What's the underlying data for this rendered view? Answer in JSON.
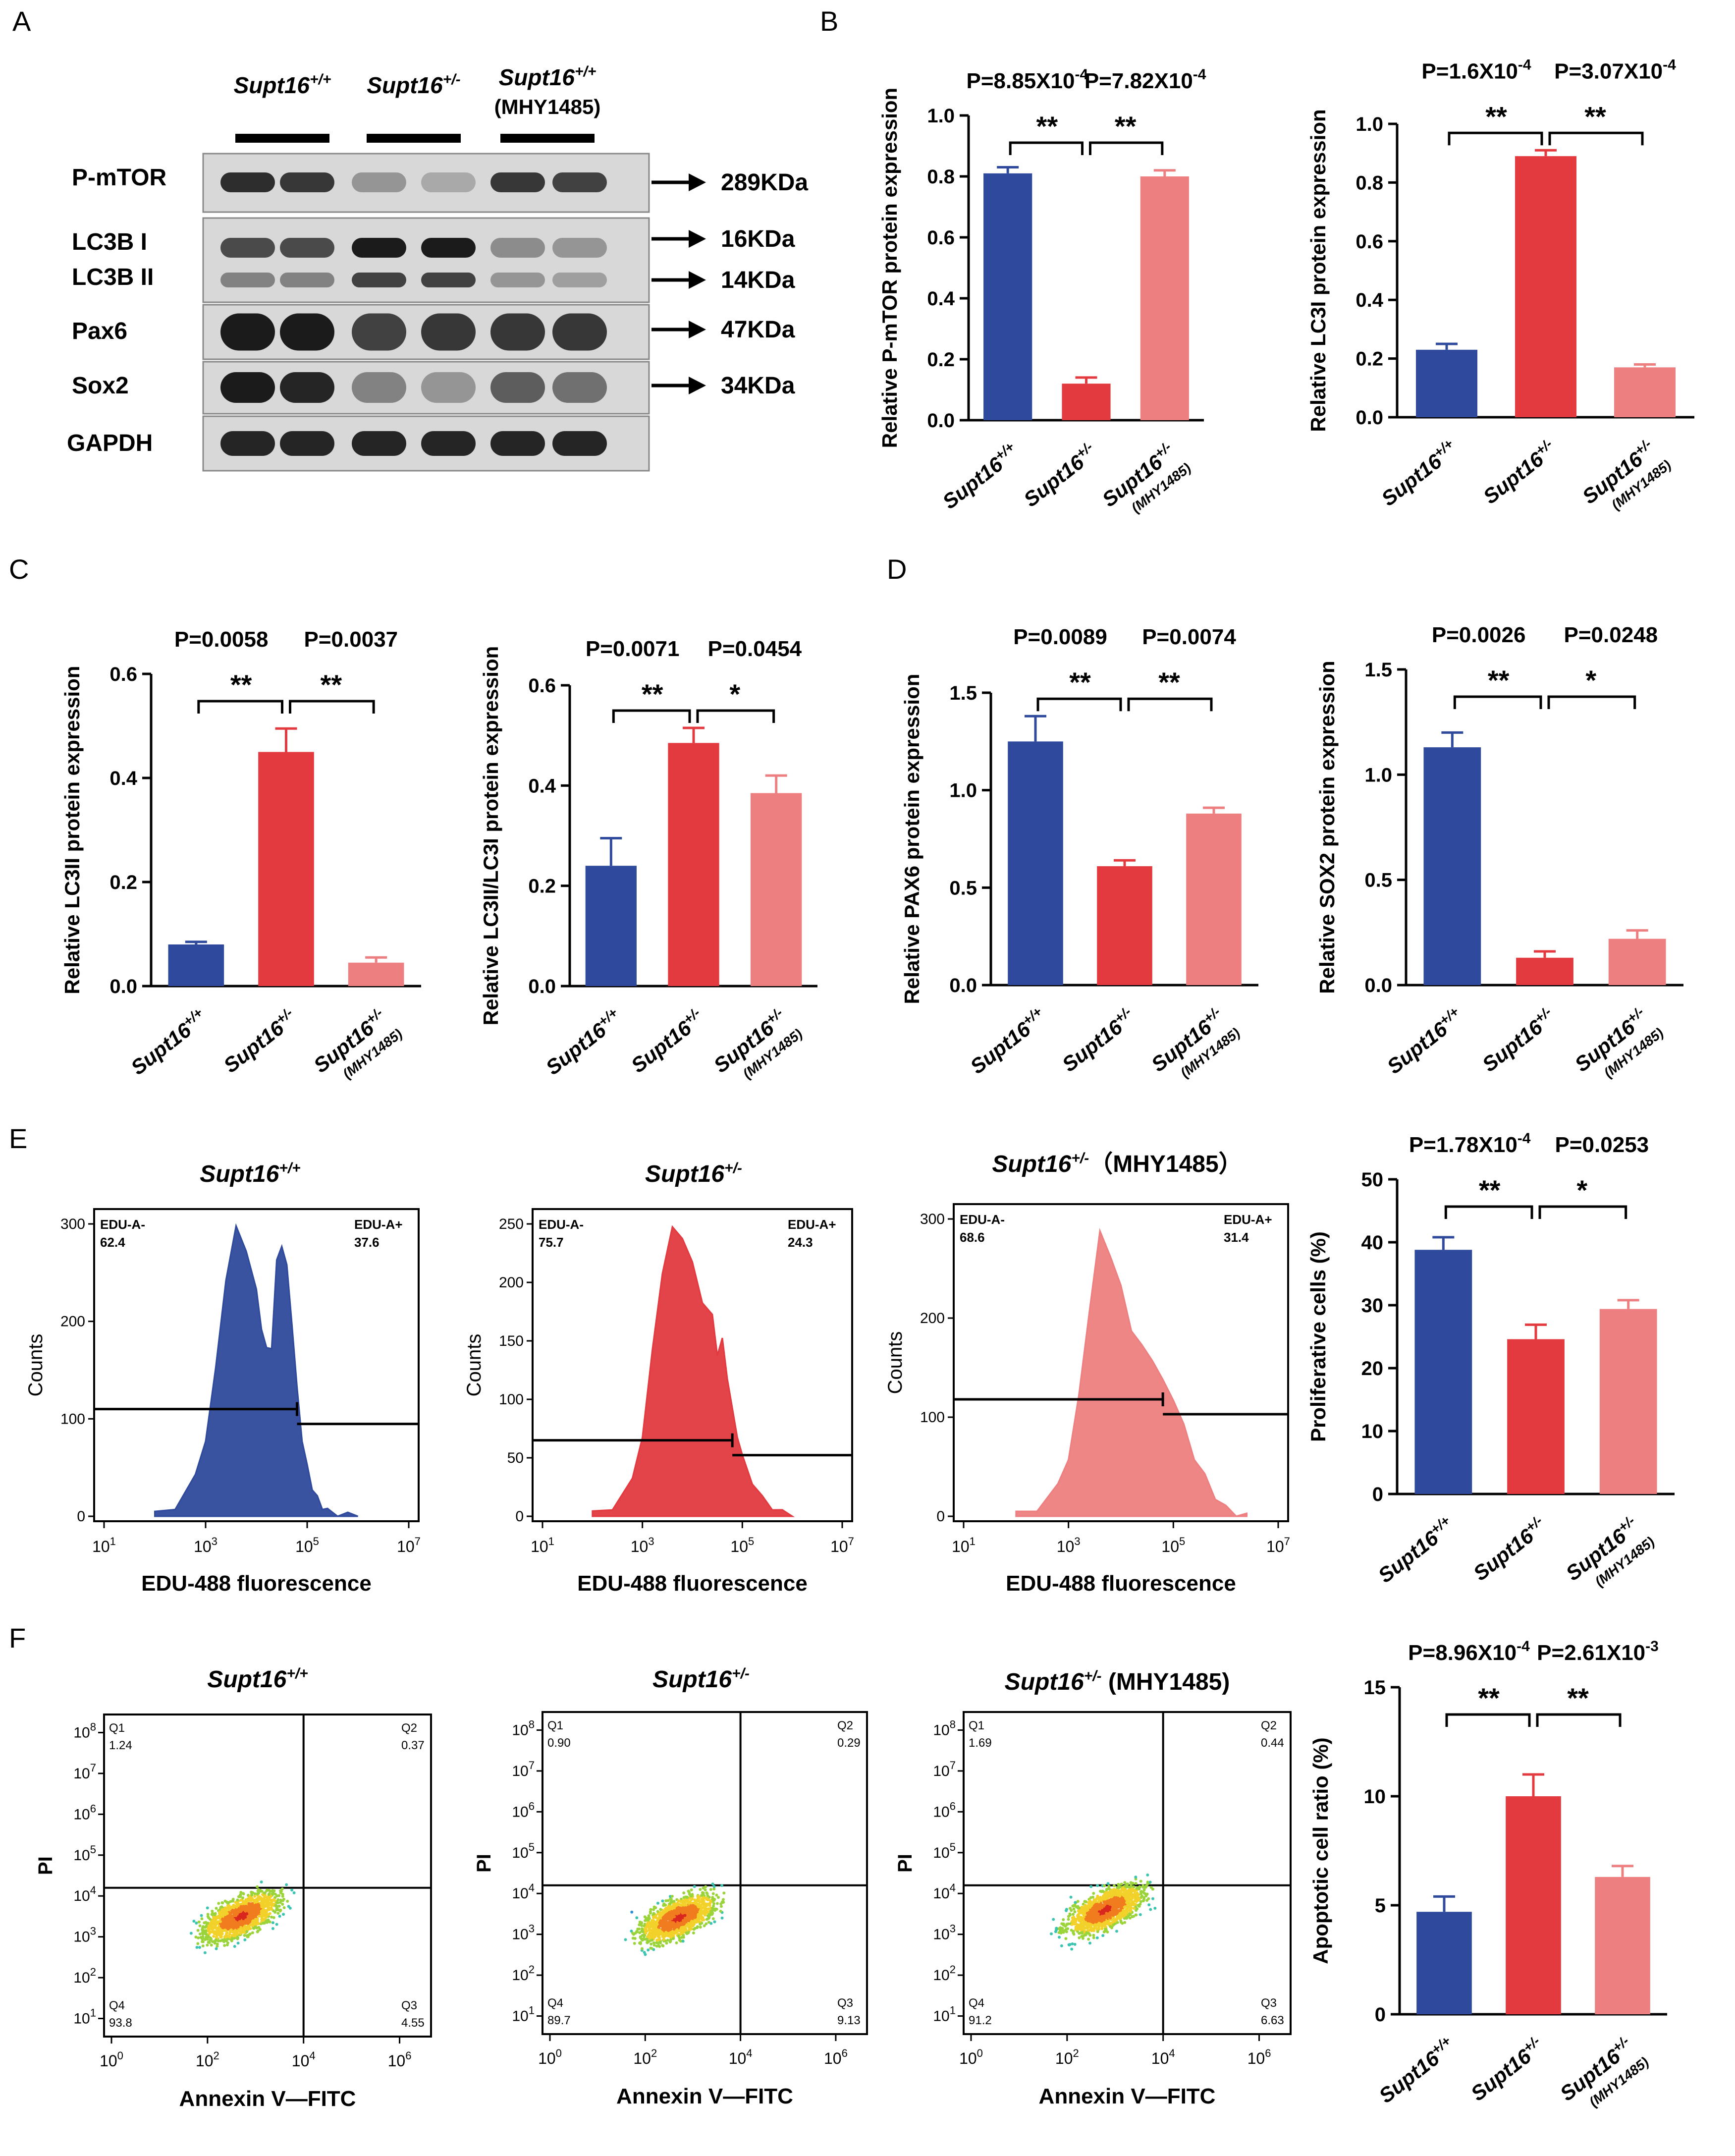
{
  "colors": {
    "wt": "#2f4a9c",
    "het": "#e23a3f",
    "mhy": "#ee7f80",
    "blot_bg": "#d8d8d8",
    "band": "#1b1b1b",
    "jet": [
      "#1f4aa8",
      "#2f8fd6",
      "#3cc4b0",
      "#9bd43a",
      "#f2d22a",
      "#f07c1f",
      "#d9261f"
    ]
  },
  "panels": {
    "A": {
      "letter": "A",
      "groups": [
        {
          "name": "Supt16",
          "sup": "+/+",
          "extra": ""
        },
        {
          "name": "Supt16",
          "sup": "+/-",
          "extra": ""
        },
        {
          "name": "Supt16",
          "sup": "+/+",
          "extra": "(MHY1485)"
        }
      ],
      "rows": [
        {
          "label": "P-mTOR",
          "size": "289KDa",
          "intensity": [
            0.9,
            0.85,
            0.35,
            0.25,
            0.85,
            0.8
          ]
        },
        {
          "label": "LC3B I",
          "size": "16KDa",
          "intensity": [
            0.75,
            0.75,
            1.0,
            1.0,
            0.4,
            0.35
          ]
        },
        {
          "label": "LC3B II",
          "size": "14KDa",
          "intensity": [
            0.45,
            0.45,
            0.8,
            0.8,
            0.35,
            0.3
          ]
        },
        {
          "label": "Pax6",
          "size": "47KDa",
          "intensity": [
            1.0,
            1.0,
            0.8,
            0.85,
            0.85,
            0.85
          ]
        },
        {
          "label": "Sox2",
          "size": "34KDa",
          "intensity": [
            1.0,
            0.95,
            0.45,
            0.35,
            0.65,
            0.55
          ]
        },
        {
          "label": "GAPDH",
          "size": "",
          "intensity": [
            0.95,
            0.95,
            0.95,
            0.95,
            0.95,
            0.95
          ]
        }
      ]
    },
    "B": "B",
    "C": "C",
    "D": "D",
    "E": {
      "letter": "E",
      "xlabel": "EDU-488 fluorescence",
      "ylabel": "Counts",
      "gate_left": "EDU-A-",
      "gate_right": "EDU-A+"
    },
    "F": {
      "letter": "F",
      "xlabel": "Annexin  V—FITC",
      "ylabel": "PI",
      "quadrant_names": [
        "Q1",
        "Q2",
        "Q4",
        "Q3"
      ]
    }
  },
  "group_labels": {
    "name": "Supt16",
    "wt": "+/+",
    "het": "+/-",
    "mhy_sup": "+/-",
    "mhy_sub": "(MHY1485)"
  },
  "chart_data": [
    {
      "id": "B1",
      "type": "bar",
      "categories": [
        "Supt16+/+",
        "Supt16+/-",
        "Supt16+/- (MHY1485)"
      ],
      "values": [
        0.81,
        0.12,
        0.8
      ],
      "errors": [
        0.02,
        0.02,
        0.02
      ],
      "ylabel": "Relative P-mTOR protein expression",
      "ylim": [
        0,
        1.0
      ],
      "yticks": [
        "0.0",
        "0.2",
        "0.4",
        "0.6",
        "0.8",
        "1.0"
      ],
      "pvalues": [
        {
          "base": "P=8.85X10",
          "exp": "-4",
          "stars": "**"
        },
        {
          "base": "P=7.82X10",
          "exp": "-4",
          "stars": "**"
        }
      ]
    },
    {
      "id": "B2",
      "type": "bar",
      "categories": [
        "Supt16+/+",
        "Supt16+/-",
        "Supt16+/- (MHY1485)"
      ],
      "values": [
        0.23,
        0.89,
        0.17
      ],
      "errors": [
        0.02,
        0.02,
        0.01
      ],
      "ylabel": "Relative LC3I protein expression",
      "ylim": [
        0,
        1.0
      ],
      "yticks": [
        "0.0",
        "0.2",
        "0.4",
        "0.6",
        "0.8",
        "1.0"
      ],
      "pvalues": [
        {
          "base": "P=1.6X10",
          "exp": "-4",
          "stars": "**"
        },
        {
          "base": "P=3.07X10",
          "exp": "-4",
          "stars": "**"
        }
      ]
    },
    {
      "id": "C1",
      "type": "bar",
      "categories": [
        "Supt16+/+",
        "Supt16+/-",
        "Supt16+/- (MHY1485)"
      ],
      "values": [
        0.08,
        0.45,
        0.045
      ],
      "errors": [
        0.005,
        0.045,
        0.01
      ],
      "ylabel": "Relative LC3II protein expression",
      "ylim": [
        0,
        0.6
      ],
      "yticks": [
        "0.0",
        "0.2",
        "0.4",
        "0.6"
      ],
      "pvalues": [
        {
          "base": "P=0.0058",
          "exp": "",
          "stars": "**"
        },
        {
          "base": "P=0.0037",
          "exp": "",
          "stars": "**"
        }
      ]
    },
    {
      "id": "C2",
      "type": "bar",
      "categories": [
        "Supt16+/+",
        "Supt16+/-",
        "Supt16+/- (MHY1485)"
      ],
      "values": [
        0.24,
        0.485,
        0.385
      ],
      "errors": [
        0.055,
        0.03,
        0.035
      ],
      "ylabel": "Relative LC3II/LC3I protein expression",
      "ylim": [
        0,
        0.6
      ],
      "yticks": [
        "0.0",
        "0.2",
        "0.4",
        "0.6"
      ],
      "pvalues": [
        {
          "base": "P=0.0071",
          "exp": "",
          "stars": "**"
        },
        {
          "base": "P=0.0454",
          "exp": "",
          "stars": "*"
        }
      ]
    },
    {
      "id": "D1",
      "type": "bar",
      "categories": [
        "Supt16+/+",
        "Supt16+/-",
        "Supt16+/- (MHY1485)"
      ],
      "values": [
        1.25,
        0.61,
        0.88
      ],
      "errors": [
        0.13,
        0.03,
        0.03
      ],
      "ylabel": "Relative PAX6 protein expression",
      "ylim": [
        0,
        1.5
      ],
      "yticks": [
        "0.0",
        "0.5",
        "1.0",
        "1.5"
      ],
      "pvalues": [
        {
          "base": "P=0.0089",
          "exp": "",
          "stars": "**"
        },
        {
          "base": "P=0.0074",
          "exp": "",
          "stars": "**"
        }
      ]
    },
    {
      "id": "D2",
      "type": "bar",
      "categories": [
        "Supt16+/+",
        "Supt16+/-",
        "Supt16+/- (MHY1485)"
      ],
      "values": [
        1.13,
        0.13,
        0.22
      ],
      "errors": [
        0.07,
        0.03,
        0.04
      ],
      "ylabel": "Relative SOX2 protein expression",
      "ylim": [
        0,
        1.5
      ],
      "yticks": [
        "0.0",
        "0.5",
        "1.0",
        "1.5"
      ],
      "pvalues": [
        {
          "base": "P=0.0026",
          "exp": "",
          "stars": "**"
        },
        {
          "base": "P=0.0248",
          "exp": "",
          "stars": "*"
        }
      ]
    },
    {
      "id": "E-bar",
      "type": "bar",
      "categories": [
        "Supt16+/+",
        "Supt16+/-",
        "Supt16+/- (MHY1485)"
      ],
      "values": [
        38.8,
        24.6,
        29.4
      ],
      "errors": [
        2.0,
        2.3,
        1.4
      ],
      "ylabel": "Proliferative cells (%)",
      "ylim": [
        0,
        50
      ],
      "yticks": [
        "0",
        "10",
        "20",
        "30",
        "40",
        "50"
      ],
      "pvalues": [
        {
          "base": "P=1.78X10",
          "exp": "-4",
          "stars": "**"
        },
        {
          "base": "P=0.0253",
          "exp": "",
          "stars": "*"
        }
      ]
    },
    {
      "id": "F-bar",
      "type": "bar",
      "categories": [
        "Supt16+/+",
        "Supt16+/-",
        "Supt16+/- (MHY1485)"
      ],
      "values": [
        4.7,
        10.0,
        6.3
      ],
      "errors": [
        0.7,
        1.0,
        0.5
      ],
      "ylabel": "Apoptotic cell ratio (%)",
      "ylim": [
        0,
        15
      ],
      "yticks": [
        "0",
        "5",
        "10",
        "15"
      ],
      "pvalues": [
        {
          "base": "P=8.96X10",
          "exp": "-4",
          "stars": "**"
        },
        {
          "base": "P=2.61X10",
          "exp": "-3",
          "stars": "**"
        }
      ]
    },
    {
      "id": "E-hist-1",
      "type": "area",
      "group": "wt",
      "title": {
        "name": "Supt16",
        "sup": "+/+",
        "extra": ""
      },
      "ylim": [
        0,
        300
      ],
      "yticks": [
        "0",
        "100",
        "200",
        "300"
      ],
      "xlim_log10": [
        1,
        7
      ],
      "xticks_exp": [
        "1",
        "3",
        "5",
        "7"
      ],
      "gate_values": {
        "left": "62.4",
        "right": "37.6"
      },
      "gate_split_log10": 4.8,
      "gate_level": 110,
      "x_log10": [
        2.0,
        2.4,
        2.8,
        3.0,
        3.2,
        3.4,
        3.6,
        3.8,
        4.0,
        4.1,
        4.2,
        4.3,
        4.4,
        4.5,
        4.6,
        4.7,
        4.8,
        4.9,
        5.0,
        5.1,
        5.2,
        5.3,
        5.4,
        5.6,
        5.8,
        6.0
      ],
      "counts": [
        2,
        10,
        40,
        80,
        150,
        245,
        295,
        275,
        230,
        195,
        170,
        175,
        260,
        280,
        255,
        200,
        130,
        80,
        50,
        30,
        18,
        10,
        5,
        2,
        1,
        0
      ]
    },
    {
      "id": "E-hist-2",
      "type": "area",
      "group": "het",
      "title": {
        "name": "Supt16",
        "sup": "+/-",
        "extra": ""
      },
      "ylim": [
        0,
        250
      ],
      "yticks": [
        "0",
        "50",
        "100",
        "150",
        "200",
        "250"
      ],
      "xlim_log10": [
        1,
        7
      ],
      "xticks_exp": [
        "1",
        "3",
        "5",
        "7"
      ],
      "gate_values": {
        "left": "75.7",
        "right": "24.3"
      },
      "gate_split_log10": 4.8,
      "gate_level": 65,
      "x_log10": [
        2.0,
        2.4,
        2.8,
        3.0,
        3.2,
        3.4,
        3.6,
        3.8,
        4.0,
        4.2,
        4.4,
        4.5,
        4.6,
        4.7,
        4.8,
        4.9,
        5.0,
        5.2,
        5.4,
        5.6,
        5.8,
        6.0
      ],
      "counts": [
        2,
        8,
        30,
        70,
        140,
        210,
        245,
        240,
        215,
        185,
        170,
        140,
        150,
        120,
        90,
        70,
        50,
        30,
        15,
        8,
        3,
        0
      ]
    },
    {
      "id": "E-hist-3",
      "type": "area",
      "group": "mhy",
      "title": {
        "name": "Supt16",
        "sup": "+/-",
        "extra": "（MHY1485）"
      },
      "ylim": [
        0,
        300
      ],
      "yticks": [
        "0",
        "100",
        "200",
        "300"
      ],
      "xlim_log10": [
        1,
        7
      ],
      "xticks_exp": [
        "1",
        "3",
        "5",
        "7"
      ],
      "gate_values": {
        "left": "68.6",
        "right": "31.4"
      },
      "gate_split_log10": 4.8,
      "gate_level": 118,
      "x_log10": [
        2.0,
        2.4,
        2.8,
        3.0,
        3.2,
        3.4,
        3.6,
        3.8,
        4.0,
        4.2,
        4.4,
        4.6,
        4.8,
        5.0,
        5.2,
        5.4,
        5.6,
        5.8,
        6.0,
        6.2,
        6.4
      ],
      "counts": [
        2,
        8,
        30,
        60,
        120,
        210,
        285,
        265,
        230,
        190,
        170,
        160,
        135,
        120,
        90,
        60,
        40,
        20,
        8,
        3,
        0
      ]
    },
    {
      "id": "F-flow-1",
      "type": "scatter",
      "group": "wt",
      "title": {
        "name": "Supt16",
        "sup": "+/+",
        "extra": ""
      },
      "xticks_exp": [
        "0",
        "2",
        "4",
        "6"
      ],
      "yticks_exp": [
        "1",
        "2",
        "3",
        "4",
        "5",
        "6",
        "7",
        "8"
      ],
      "quadrants": {
        "Q1": "1.24",
        "Q2": "0.37",
        "Q4": "93.8",
        "Q3": "4.55"
      },
      "population_center_log10": [
        2.7,
        3.5
      ]
    },
    {
      "id": "F-flow-2",
      "type": "scatter",
      "group": "het",
      "title": {
        "name": "Supt16",
        "sup": "+/-",
        "extra": ""
      },
      "xticks_exp": [
        "0",
        "2",
        "4",
        "6"
      ],
      "yticks_exp": [
        "1",
        "2",
        "3",
        "4",
        "5",
        "6",
        "7",
        "8"
      ],
      "quadrants": {
        "Q1": "0.90",
        "Q2": "0.29",
        "Q4": "89.7",
        "Q3": "9.13"
      },
      "population_center_log10": [
        2.7,
        3.4
      ]
    },
    {
      "id": "F-flow-3",
      "type": "scatter",
      "group": "mhy",
      "title": {
        "name": "Supt16",
        "sup": "+/-",
        "extra": " (MHY1485)"
      },
      "xticks_exp": [
        "0",
        "2",
        "4",
        "6"
      ],
      "yticks_exp": [
        "1",
        "2",
        "3",
        "4",
        "5",
        "6",
        "7",
        "8"
      ],
      "quadrants": {
        "Q1": "1.69",
        "Q2": "0.44",
        "Q4": "91.2",
        "Q3": "6.63"
      },
      "population_center_log10": [
        2.8,
        3.6
      ]
    }
  ]
}
